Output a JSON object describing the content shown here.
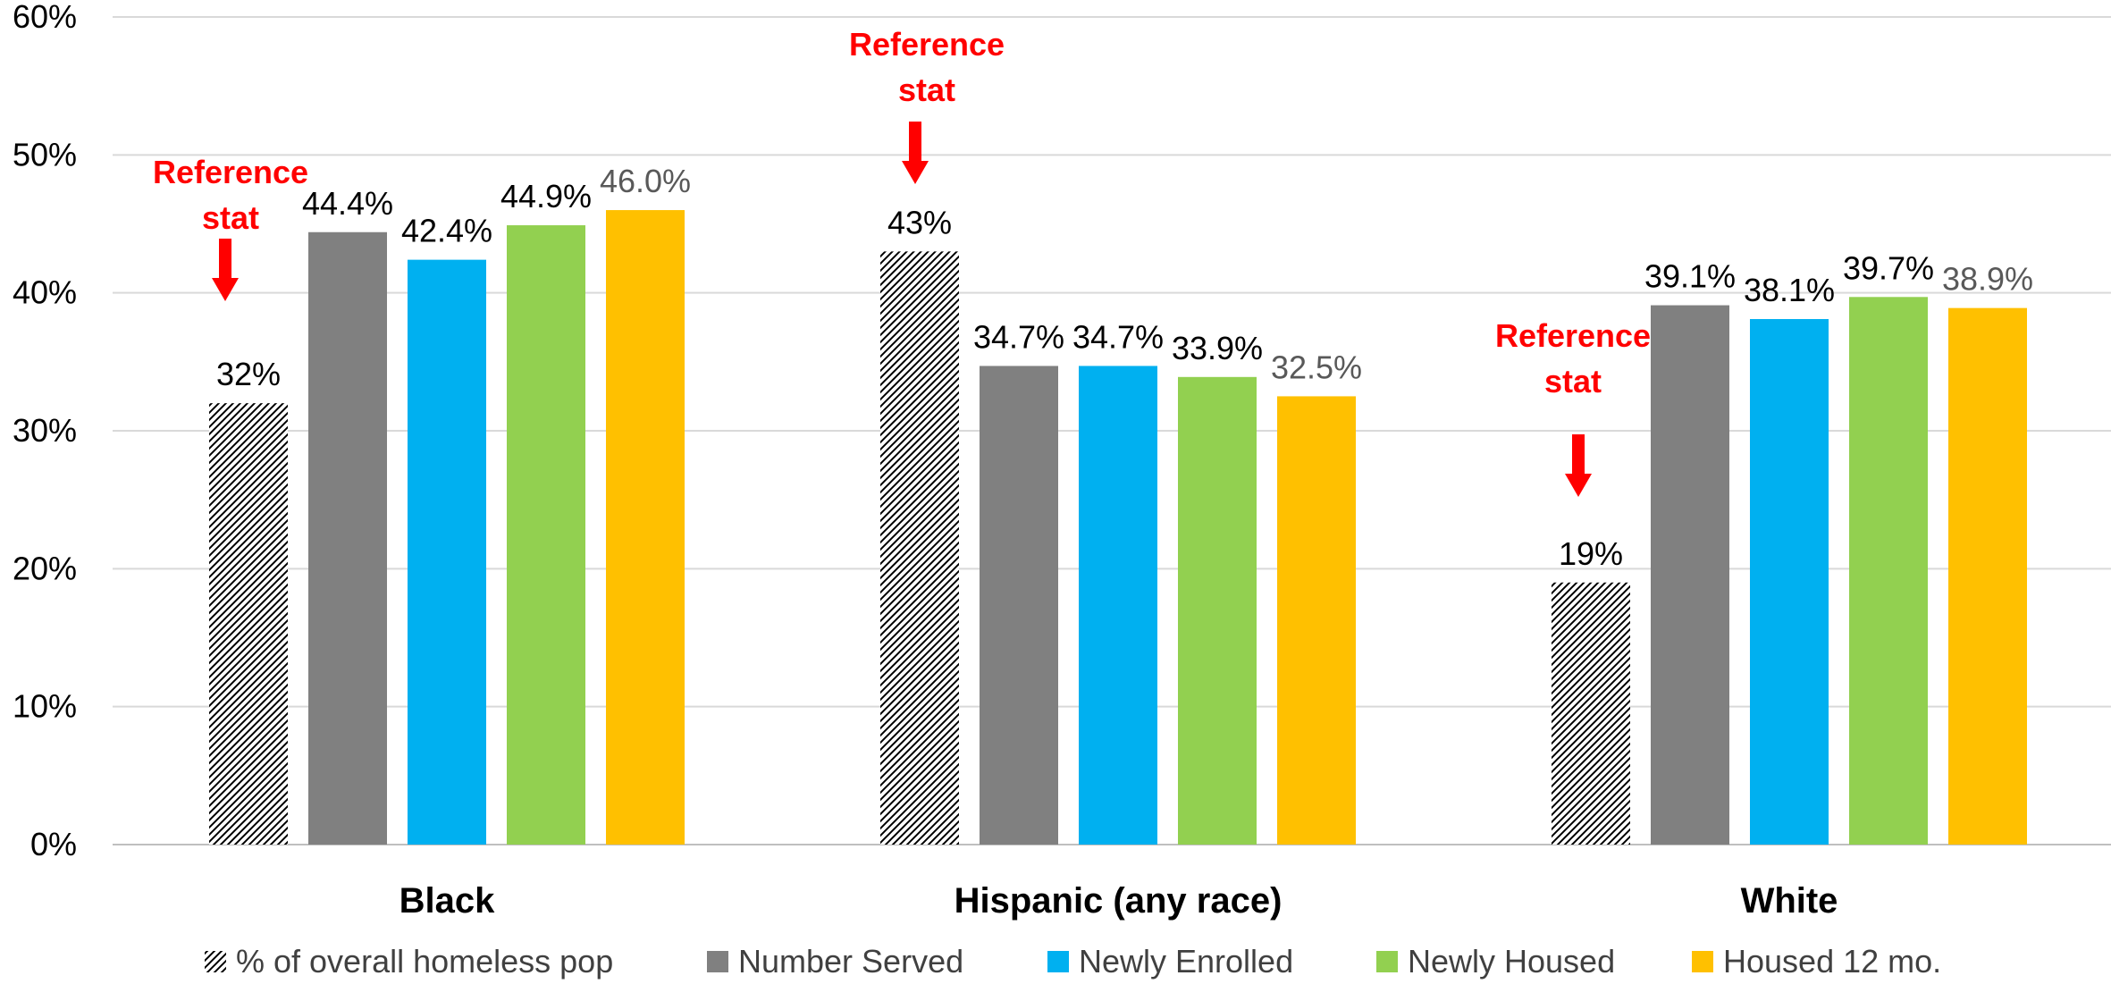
{
  "chart_data": {
    "type": "bar",
    "categories": [
      "Black",
      "Hispanic (any race)",
      "White"
    ],
    "ylim": [
      0,
      60
    ],
    "yticks": [
      "0%",
      "10%",
      "20%",
      "30%",
      "40%",
      "50%",
      "60%"
    ],
    "grid": true,
    "legend_position": "bottom",
    "series": [
      {
        "name": "% of overall homeless pop",
        "values": [
          32,
          43,
          19
        ],
        "labels": [
          "32%",
          "43%",
          "19%"
        ],
        "color": "#000000",
        "pattern": "hatch"
      },
      {
        "name": "Number Served",
        "values": [
          44.4,
          34.7,
          39.1
        ],
        "labels": [
          "44.4%",
          "34.7%",
          "39.1%"
        ],
        "color": "#808080"
      },
      {
        "name": "Newly Enrolled",
        "values": [
          42.4,
          34.7,
          38.1
        ],
        "labels": [
          "42.4%",
          "34.7%",
          "38.1%"
        ],
        "color": "#00B0F0"
      },
      {
        "name": "Newly Housed",
        "values": [
          44.9,
          33.9,
          39.7
        ],
        "labels": [
          "44.9%",
          "33.9%",
          "39.7%"
        ],
        "color": "#92D050"
      },
      {
        "name": "Housed 12 mo.",
        "values": [
          46.0,
          32.5,
          38.9
        ],
        "labels": [
          "46.0%",
          "32.5%",
          "38.9%"
        ],
        "color": "#FFC000"
      }
    ],
    "annotations": [
      {
        "category_index": 0,
        "line1": "Reference",
        "line2": "stat",
        "color": "#FF0000"
      },
      {
        "category_index": 1,
        "line1": "Reference",
        "line2": "stat",
        "color": "#FF0000"
      },
      {
        "category_index": 2,
        "line1": "Reference",
        "line2": "stat",
        "color": "#FF0000"
      }
    ]
  }
}
